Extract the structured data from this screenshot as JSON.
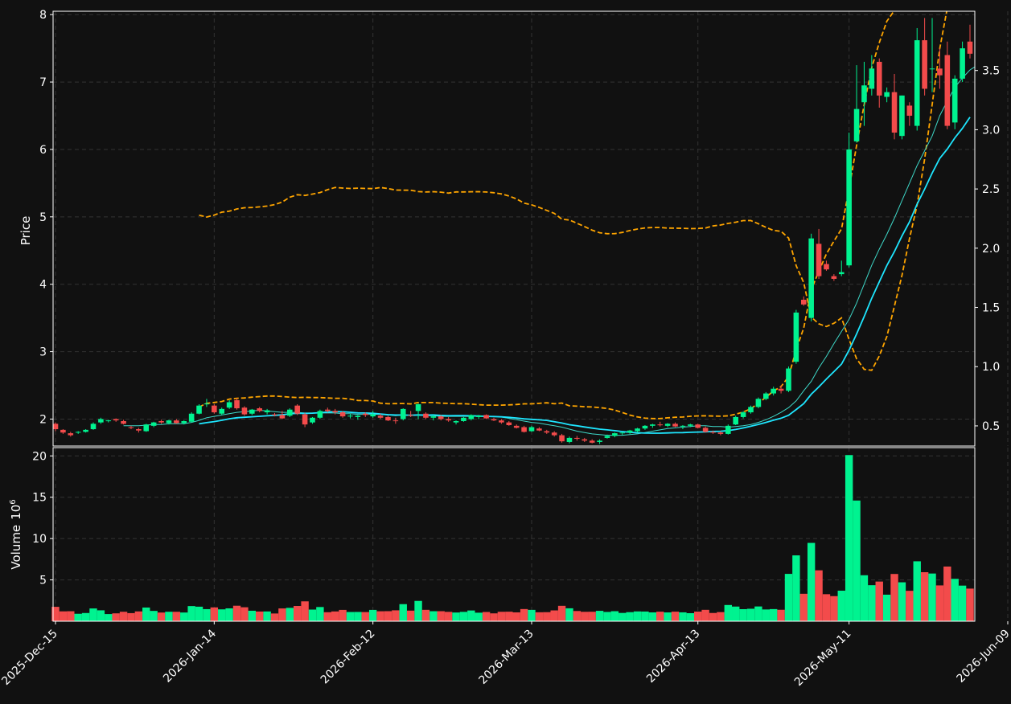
{
  "chart_data": {
    "type": "candlestick",
    "xlabel": "",
    "ylabel": "Price",
    "volume_label": "Volume",
    "volume_exponent_base": "10",
    "volume_exponent_power": "6",
    "price_ylim": [
      1.6,
      8.05
    ],
    "secondary_ylim": [
      0.33,
      4.0
    ],
    "volume_ylim": [
      0,
      21
    ],
    "grid": true,
    "x_tick_labels": [
      "2025-Dec-15",
      "2026-Jan-14",
      "2026-Feb-12",
      "2026-Mar-13",
      "2026-Apr-13",
      "2026-May-11",
      "2026-Jun-09"
    ],
    "price_ticks": [
      "2",
      "3",
      "4",
      "5",
      "6",
      "7",
      "8"
    ],
    "secondary_ticks": [
      "0.5",
      "1.0",
      "1.5",
      "2.0",
      "2.5",
      "3.0",
      "3.5"
    ],
    "volume_ticks": [
      "5",
      "10",
      "15",
      "20"
    ],
    "ohlc": [
      [
        1.93,
        1.95,
        1.82,
        1.85
      ],
      [
        1.84,
        1.85,
        1.78,
        1.8
      ],
      [
        1.79,
        1.81,
        1.74,
        1.76
      ],
      [
        1.8,
        1.82,
        1.78,
        1.81
      ],
      [
        1.81,
        1.85,
        1.8,
        1.84
      ],
      [
        1.85,
        1.95,
        1.84,
        1.93
      ],
      [
        1.95,
        2.02,
        1.93,
        2.0
      ],
      [
        1.97,
        1.99,
        1.95,
        1.98
      ],
      [
        2.0,
        2.01,
        1.96,
        1.98
      ],
      [
        1.97,
        1.99,
        1.92,
        1.93
      ],
      [
        1.88,
        1.9,
        1.85,
        1.87
      ],
      [
        1.85,
        1.87,
        1.8,
        1.83
      ],
      [
        1.82,
        1.93,
        1.81,
        1.92
      ],
      [
        1.9,
        1.96,
        1.88,
        1.95
      ],
      [
        1.97,
        1.99,
        1.93,
        1.95
      ],
      [
        1.94,
        1.99,
        1.92,
        1.98
      ],
      [
        1.98,
        2.0,
        1.93,
        1.94
      ],
      [
        1.94,
        1.98,
        1.92,
        1.97
      ],
      [
        1.96,
        2.1,
        1.95,
        2.08
      ],
      [
        2.08,
        2.22,
        2.07,
        2.2
      ],
      [
        2.22,
        2.3,
        2.18,
        2.23
      ],
      [
        2.2,
        2.22,
        2.08,
        2.1
      ],
      [
        2.08,
        2.17,
        2.06,
        2.15
      ],
      [
        2.17,
        2.28,
        2.15,
        2.25
      ],
      [
        2.28,
        2.31,
        2.14,
        2.16
      ],
      [
        2.17,
        2.19,
        2.05,
        2.07
      ],
      [
        2.08,
        2.15,
        2.06,
        2.14
      ],
      [
        2.16,
        2.18,
        2.1,
        2.12
      ],
      [
        2.1,
        2.15,
        2.07,
        2.13
      ],
      [
        2.07,
        2.09,
        2.04,
        2.06
      ],
      [
        2.06,
        2.12,
        2.0,
        2.01
      ],
      [
        2.05,
        2.16,
        2.03,
        2.14
      ],
      [
        2.2,
        2.22,
        2.06,
        2.08
      ],
      [
        2.07,
        2.09,
        1.88,
        1.92
      ],
      [
        1.95,
        2.03,
        1.93,
        2.02
      ],
      [
        2.02,
        2.14,
        2.0,
        2.12
      ],
      [
        2.14,
        2.17,
        2.1,
        2.12
      ],
      [
        2.12,
        2.15,
        2.07,
        2.1
      ],
      [
        2.1,
        2.12,
        2.02,
        2.04
      ],
      [
        2.04,
        2.08,
        2.01,
        2.05
      ],
      [
        2.03,
        2.06,
        1.99,
        2.05
      ],
      [
        2.08,
        2.1,
        2.03,
        2.06
      ],
      [
        2.04,
        2.12,
        2.02,
        2.07
      ],
      [
        2.05,
        2.08,
        2.0,
        2.02
      ],
      [
        2.03,
        2.05,
        1.97,
        1.98
      ],
      [
        1.98,
        2.02,
        1.93,
        1.97
      ],
      [
        2.0,
        2.16,
        1.98,
        2.15
      ],
      [
        2.06,
        2.12,
        2.03,
        2.05
      ],
      [
        2.12,
        2.23,
        2.0,
        2.22
      ],
      [
        2.08,
        2.1,
        2.0,
        2.02
      ],
      [
        2.02,
        2.06,
        1.98,
        2.04
      ],
      [
        2.04,
        2.06,
        1.98,
        2.0
      ],
      [
        2.0,
        2.03,
        1.96,
        1.98
      ],
      [
        1.95,
        1.98,
        1.92,
        1.97
      ],
      [
        1.97,
        2.03,
        1.96,
        2.02
      ],
      [
        2.0,
        2.07,
        1.98,
        2.06
      ],
      [
        2.03,
        2.06,
        2.0,
        2.05
      ],
      [
        2.06,
        2.07,
        2.0,
        2.01
      ],
      [
        2.0,
        2.02,
        1.97,
        1.98
      ],
      [
        1.98,
        2.0,
        1.93,
        1.95
      ],
      [
        1.95,
        1.97,
        1.9,
        1.91
      ],
      [
        1.9,
        1.92,
        1.86,
        1.87
      ],
      [
        1.88,
        1.9,
        1.8,
        1.81
      ],
      [
        1.82,
        1.9,
        1.81,
        1.88
      ],
      [
        1.86,
        1.88,
        1.82,
        1.83
      ],
      [
        1.82,
        1.84,
        1.78,
        1.8
      ],
      [
        1.8,
        1.82,
        1.74,
        1.76
      ],
      [
        1.76,
        1.78,
        1.65,
        1.67
      ],
      [
        1.66,
        1.74,
        1.64,
        1.72
      ],
      [
        1.72,
        1.75,
        1.68,
        1.71
      ],
      [
        1.7,
        1.72,
        1.66,
        1.68
      ],
      [
        1.68,
        1.7,
        1.64,
        1.65
      ],
      [
        1.66,
        1.7,
        1.63,
        1.68
      ],
      [
        1.72,
        1.77,
        1.71,
        1.75
      ],
      [
        1.75,
        1.8,
        1.73,
        1.79
      ],
      [
        1.79,
        1.81,
        1.76,
        1.8
      ],
      [
        1.8,
        1.84,
        1.78,
        1.83
      ],
      [
        1.82,
        1.87,
        1.8,
        1.86
      ],
      [
        1.86,
        1.91,
        1.84,
        1.9
      ],
      [
        1.9,
        1.93,
        1.87,
        1.92
      ],
      [
        1.92,
        1.96,
        1.89,
        1.91
      ],
      [
        1.9,
        1.94,
        1.88,
        1.93
      ],
      [
        1.93,
        1.95,
        1.88,
        1.89
      ],
      [
        1.89,
        1.91,
        1.85,
        1.9
      ],
      [
        1.9,
        1.93,
        1.88,
        1.92
      ],
      [
        1.92,
        1.93,
        1.86,
        1.87
      ],
      [
        1.87,
        1.89,
        1.8,
        1.81
      ],
      [
        1.81,
        1.83,
        1.78,
        1.8
      ],
      [
        1.8,
        1.82,
        1.76,
        1.78
      ],
      [
        1.78,
        1.92,
        1.77,
        1.9
      ],
      [
        1.92,
        2.05,
        1.91,
        2.03
      ],
      [
        2.03,
        2.12,
        2.01,
        2.1
      ],
      [
        2.1,
        2.2,
        2.08,
        2.18
      ],
      [
        2.18,
        2.32,
        2.16,
        2.3
      ],
      [
        2.3,
        2.4,
        2.28,
        2.38
      ],
      [
        2.38,
        2.48,
        2.35,
        2.45
      ],
      [
        2.45,
        2.5,
        2.38,
        2.42
      ],
      [
        2.42,
        2.78,
        2.4,
        2.75
      ],
      [
        2.85,
        3.62,
        2.82,
        3.58
      ],
      [
        3.77,
        3.82,
        3.68,
        3.7
      ],
      [
        3.5,
        4.75,
        3.45,
        4.68
      ],
      [
        4.6,
        4.82,
        4.08,
        4.12
      ],
      [
        4.3,
        4.35,
        4.2,
        4.22
      ],
      [
        4.12,
        4.15,
        4.05,
        4.08
      ],
      [
        4.15,
        4.35,
        4.12,
        4.18
      ],
      [
        4.28,
        6.25,
        4.25,
        6.0
      ],
      [
        6.12,
        7.25,
        6.1,
        6.6
      ],
      [
        6.7,
        7.3,
        6.35,
        6.95
      ],
      [
        6.9,
        7.4,
        6.8,
        7.2
      ],
      [
        7.3,
        7.35,
        6.62,
        6.8
      ],
      [
        6.78,
        6.92,
        6.7,
        6.85
      ],
      [
        6.85,
        7.12,
        6.15,
        6.25
      ],
      [
        6.2,
        6.8,
        6.15,
        6.8
      ],
      [
        6.65,
        6.7,
        6.35,
        6.5
      ],
      [
        6.35,
        7.8,
        6.28,
        7.62
      ],
      [
        7.62,
        7.95,
        6.8,
        6.9
      ],
      [
        7.2,
        7.95,
        6.85,
        7.2
      ],
      [
        7.2,
        7.5,
        6.9,
        7.1
      ],
      [
        7.4,
        7.6,
        6.3,
        6.35
      ],
      [
        6.4,
        7.1,
        6.3,
        7.05
      ],
      [
        7.05,
        7.6,
        7.0,
        7.5
      ],
      [
        7.6,
        7.85,
        7.35,
        7.42
      ]
    ],
    "sma_short": [
      null,
      null,
      null,
      null,
      null,
      null,
      null,
      null,
      null,
      1.9,
      1.9,
      1.9,
      1.91,
      1.92,
      1.92,
      1.93,
      1.93,
      1.93,
      1.95,
      1.98,
      2.02,
      2.04,
      2.06,
      2.08,
      2.1,
      2.11,
      2.12,
      2.13,
      2.12,
      2.11,
      2.1,
      2.1,
      2.1,
      2.09,
      2.09,
      2.09,
      2.09,
      2.09,
      2.08,
      2.08,
      2.07,
      2.07,
      2.07,
      2.07,
      2.06,
      2.05,
      2.06,
      2.05,
      2.06,
      2.05,
      2.05,
      2.04,
      2.04,
      2.04,
      2.04,
      2.04,
      2.05,
      2.04,
      2.04,
      2.03,
      2.01,
      1.99,
      1.97,
      1.95,
      1.94,
      1.92,
      1.9,
      1.88,
      1.85,
      1.82,
      1.8,
      1.78,
      1.77,
      1.76,
      1.76,
      1.76,
      1.77,
      1.78,
      1.8,
      1.82,
      1.84,
      1.86,
      1.87,
      1.88,
      1.89,
      1.9,
      1.9,
      1.89,
      1.89,
      1.88,
      1.89,
      1.9,
      1.92,
      1.95,
      1.99,
      2.04,
      2.1,
      2.17,
      2.27,
      2.42,
      2.56,
      2.76,
      2.93,
      3.12,
      3.3,
      3.48,
      3.72,
      4.0,
      4.28,
      4.52,
      4.74,
      4.98,
      5.24,
      5.5,
      5.76,
      5.98,
      6.2,
      6.5,
      6.72,
      6.92,
      7.06,
      7.18,
      7.25,
      7.25,
      7.28,
      7.32
    ]
  }
}
